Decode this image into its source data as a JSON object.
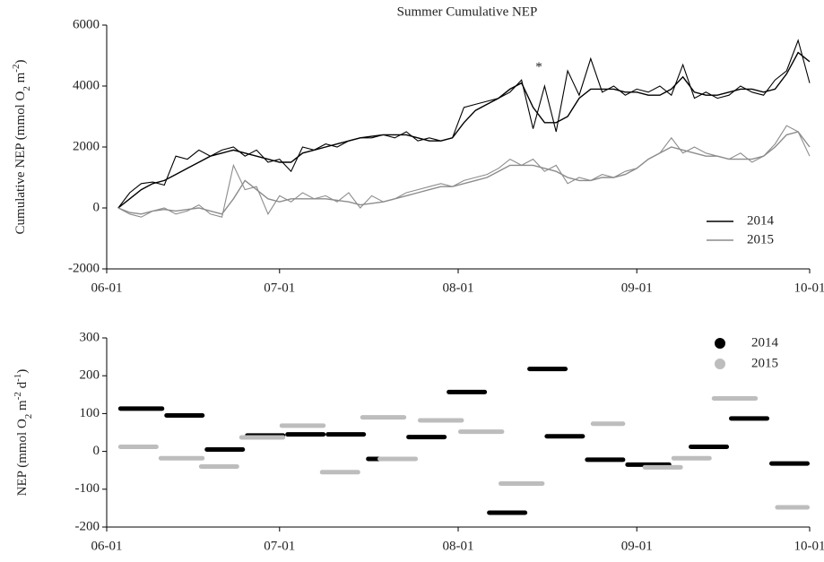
{
  "chart_data": [
    {
      "type": "line",
      "title": "Summer Cumulative NEP",
      "ylabel": [
        {
          "text": "Cumulative NEP (mmol O"
        },
        {
          "text": "2",
          "sub": true
        },
        {
          "text": " m"
        },
        {
          "text": "-2",
          "sup": true
        },
        {
          "text": ")"
        }
      ],
      "x": [
        2,
        4,
        6,
        8,
        10,
        12,
        14,
        16,
        18,
        20,
        22,
        24,
        26,
        28,
        30,
        32,
        34,
        36,
        38,
        40,
        42,
        44,
        46,
        48,
        50,
        52,
        54,
        56,
        58,
        60,
        62,
        64,
        66,
        68,
        70,
        72,
        74,
        76,
        78,
        80,
        82,
        84,
        86,
        88,
        90,
        92,
        94,
        96,
        98,
        100,
        102,
        104,
        106,
        108,
        110,
        112,
        114,
        116,
        118,
        120,
        122
      ],
      "series": [
        {
          "name": "2014",
          "color": "#000000",
          "values": [
            0,
            500,
            800,
            850,
            750,
            1700,
            1600,
            1900,
            1700,
            1900,
            2000,
            1700,
            1900,
            1500,
            1600,
            1200,
            2000,
            1900,
            2100,
            2000,
            2200,
            2300,
            2300,
            2400,
            2300,
            2500,
            2200,
            2300,
            2200,
            2300,
            3300,
            3400,
            3500,
            3600,
            3800,
            4200,
            2600,
            4000,
            2500,
            4500,
            3700,
            4900,
            3800,
            4000,
            3700,
            3900,
            3800,
            4000,
            3700,
            4700,
            3600,
            3800,
            3600,
            3700,
            4000,
            3800,
            3700,
            4200,
            4500,
            5500,
            4100
          ],
          "smooth": [
            0,
            300,
            600,
            800,
            900,
            1100,
            1300,
            1500,
            1700,
            1800,
            1900,
            1800,
            1700,
            1600,
            1500,
            1500,
            1800,
            1900,
            2000,
            2100,
            2200,
            2300,
            2350,
            2400,
            2400,
            2400,
            2300,
            2200,
            2200,
            2300,
            2800,
            3200,
            3400,
            3600,
            3900,
            4100,
            3300,
            2800,
            2800,
            3000,
            3600,
            3900,
            3900,
            3900,
            3800,
            3800,
            3700,
            3700,
            3900,
            4300,
            3800,
            3700,
            3700,
            3800,
            3900,
            3900,
            3800,
            3900,
            4400,
            5100,
            4800
          ]
        },
        {
          "name": "2015",
          "color": "#8c8c8c",
          "values": [
            0,
            -200,
            -300,
            -100,
            0,
            -200,
            -100,
            100,
            -200,
            -300,
            1400,
            600,
            700,
            -200,
            400,
            200,
            500,
            300,
            400,
            200,
            500,
            0,
            400,
            200,
            300,
            500,
            600,
            700,
            800,
            700,
            900,
            1000,
            1100,
            1300,
            1600,
            1400,
            1600,
            1200,
            1400,
            800,
            1000,
            900,
            1100,
            1000,
            1200,
            1300,
            1600,
            1800,
            2300,
            1800,
            2000,
            1800,
            1700,
            1600,
            1800,
            1500,
            1700,
            2100,
            2700,
            2500,
            1700
          ],
          "smooth": [
            0,
            -150,
            -200,
            -100,
            -50,
            -100,
            -50,
            0,
            -100,
            -200,
            300,
            900,
            600,
            300,
            200,
            300,
            300,
            300,
            300,
            250,
            200,
            100,
            150,
            200,
            300,
            400,
            500,
            600,
            700,
            700,
            800,
            900,
            1000,
            1200,
            1400,
            1400,
            1400,
            1300,
            1200,
            1000,
            900,
            900,
            1000,
            1000,
            1100,
            1300,
            1600,
            1800,
            2000,
            1900,
            1800,
            1700,
            1700,
            1600,
            1600,
            1600,
            1700,
            2000,
            2400,
            2500,
            2000
          ]
        }
      ],
      "annotation": {
        "text": "*",
        "x": 75,
        "y": 4600
      },
      "xlim": [
        0,
        122
      ],
      "xticks": [
        {
          "value": 0,
          "label": "06-01"
        },
        {
          "value": 30,
          "label": "07-01"
        },
        {
          "value": 61,
          "label": "08-01"
        },
        {
          "value": 92,
          "label": "09-01"
        },
        {
          "value": 122,
          "label": "10-01"
        }
      ],
      "ylim": [
        -2000,
        6000
      ],
      "yticks": [
        -2000,
        0,
        2000,
        4000,
        6000
      ],
      "legend": "lower right"
    },
    {
      "type": "segment",
      "ylabel": [
        {
          "text": "NEP (mmol O"
        },
        {
          "text": "2",
          "sub": true
        },
        {
          "text": " m"
        },
        {
          "text": "-2",
          "sup": true
        },
        {
          "text": " d"
        },
        {
          "text": "-1",
          "sup": true
        },
        {
          "text": ")"
        }
      ],
      "series": [
        {
          "name": "2014",
          "color": "#000000",
          "start": [
            2,
            10,
            17,
            24,
            31,
            38,
            45,
            52,
            59,
            66,
            73,
            76,
            83,
            90,
            101,
            108,
            115
          ],
          "end": [
            10,
            17,
            24,
            31,
            38,
            45,
            52,
            59,
            66,
            73,
            80,
            83,
            90,
            98,
            108,
            115,
            122
          ],
          "values": [
            113,
            95,
            5,
            42,
            45,
            45,
            -20,
            38,
            157,
            -162,
            218,
            40,
            -22,
            -35,
            12,
            87,
            -32
          ]
        },
        {
          "name": "2015",
          "color": "#bdbdbd",
          "start": [
            2,
            9,
            16,
            23,
            30,
            37,
            44,
            47,
            54,
            61,
            68,
            84,
            93,
            98,
            105,
            116
          ],
          "end": [
            9,
            17,
            23,
            31,
            38,
            44,
            52,
            54,
            62,
            69,
            76,
            90,
            100,
            105,
            113,
            122
          ],
          "values": [
            12,
            -18,
            -40,
            37,
            68,
            -55,
            90,
            -20,
            82,
            52,
            -85,
            73,
            -42,
            -18,
            140,
            -148
          ]
        }
      ],
      "xlim": [
        0,
        122
      ],
      "xticks": [
        {
          "value": 0,
          "label": "06-01"
        },
        {
          "value": 30,
          "label": "07-01"
        },
        {
          "value": 61,
          "label": "08-01"
        },
        {
          "value": 92,
          "label": "09-01"
        },
        {
          "value": 122,
          "label": "10-01"
        }
      ],
      "ylim": [
        -200,
        300
      ],
      "yticks": [
        -200,
        -100,
        0,
        100,
        200,
        300
      ],
      "legend": "upper right"
    }
  ]
}
